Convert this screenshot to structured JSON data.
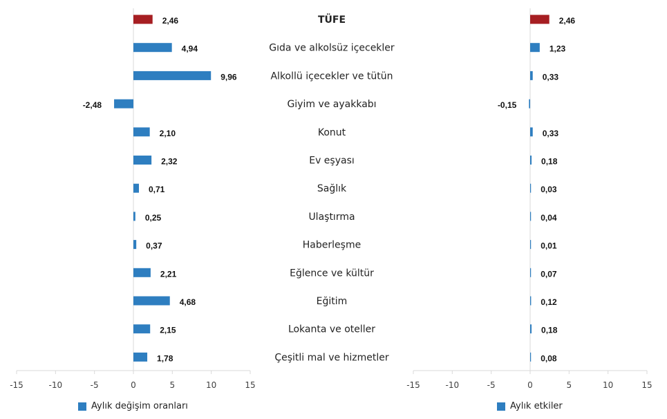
{
  "colors": {
    "bar": "#2E7EC0",
    "highlight": "#A61E22",
    "axis": "#d9d9d9",
    "text": "#333333"
  },
  "category_labels": [
    "TÜFE",
    "Gıda ve alkolsüz içecekler",
    "Alkollü içecekler ve tütün",
    "Giyim ve ayakkabı",
    "Konut",
    "Ev eşyası",
    "Sağlık",
    "Ulaştırma",
    "Haberleşme",
    "Eğlence ve kültür",
    "Eğitim",
    "Lokanta ve oteller",
    "Çeşitli mal ve hizmetler"
  ],
  "legend": {
    "left": "Aylık değişim oranları",
    "right": "Aylık etkiler"
  },
  "chart_data": [
    {
      "type": "bar",
      "orientation": "horizontal",
      "series": [
        {
          "name": "Aylık değişim oranları",
          "values": [
            2.46,
            4.94,
            9.96,
            -2.48,
            2.1,
            2.32,
            0.71,
            0.25,
            0.37,
            2.21,
            4.68,
            2.15,
            1.78
          ],
          "labels": [
            "2,46",
            "4,94",
            "9,96",
            "-2,48",
            "2,10",
            "2,32",
            "0,71",
            "0,25",
            "0,37",
            "2,21",
            "4,68",
            "2,15",
            "1,78"
          ]
        }
      ],
      "xlim": [
        -15,
        15
      ],
      "ticks": [
        -15,
        -10,
        -5,
        0,
        5,
        10,
        15
      ],
      "tick_labels": [
        "-15",
        "-10",
        "-5",
        "0",
        "5",
        "10",
        "15"
      ],
      "highlight_index": 0,
      "legend_position": "bottom-left"
    },
    {
      "type": "bar",
      "orientation": "horizontal",
      "series": [
        {
          "name": "Aylık etkiler",
          "values": [
            2.46,
            1.23,
            0.33,
            -0.15,
            0.33,
            0.18,
            0.03,
            0.04,
            0.01,
            0.07,
            0.12,
            0.18,
            0.08
          ],
          "labels": [
            "2,46",
            "1,23",
            "0,33",
            "-0,15",
            "0,33",
            "0,18",
            "0,03",
            "0,04",
            "0,01",
            "0,07",
            "0,12",
            "0,18",
            "0,08"
          ]
        }
      ],
      "xlim": [
        -15,
        15
      ],
      "ticks": [
        -15,
        -10,
        -5,
        0,
        5,
        10,
        15
      ],
      "tick_labels": [
        "-15",
        "-10",
        "-5",
        "0",
        "5",
        "10",
        "15"
      ],
      "highlight_index": 0,
      "legend_position": "bottom-right"
    }
  ]
}
